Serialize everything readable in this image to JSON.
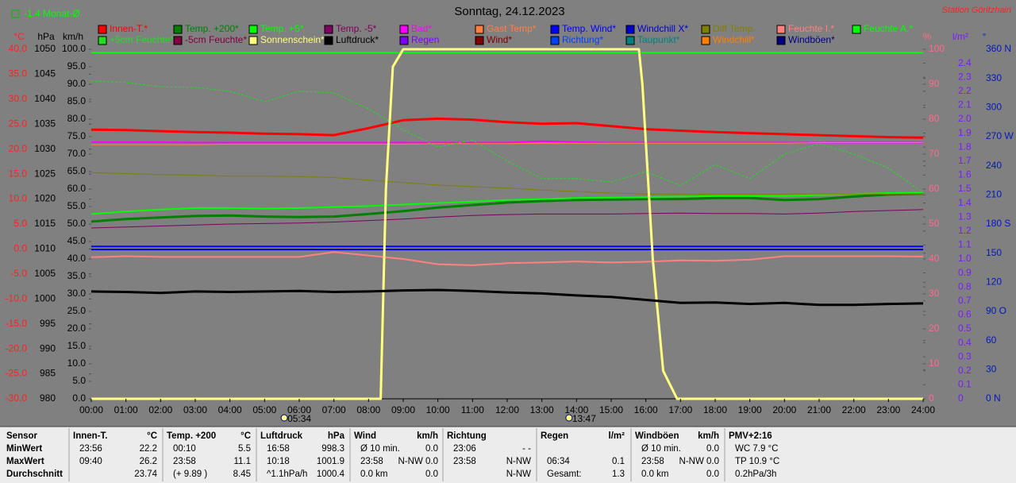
{
  "chart_data": {
    "type": "line",
    "title": "Sonntag, 24.12.2023",
    "station": "Station Göritzhain",
    "month_avg": "-1.4 Monat-Ø",
    "x": [
      0,
      1,
      2,
      3,
      4,
      5,
      6,
      7,
      8,
      9,
      10,
      11,
      12,
      13,
      14,
      15,
      16,
      17,
      18,
      19,
      20,
      21,
      22,
      23,
      24
    ],
    "xlim": [
      0,
      24
    ],
    "xticks": [
      {
        "value": 0,
        "label": "00:00"
      },
      {
        "value": 1,
        "label": "01:00"
      },
      {
        "value": 2,
        "label": "02:00"
      },
      {
        "value": 3,
        "label": "03:00"
      },
      {
        "value": 4,
        "label": "04:00"
      },
      {
        "value": 5,
        "label": "05:00"
      },
      {
        "value": 6,
        "label": "06:00"
      },
      {
        "value": 7,
        "label": "07:00"
      },
      {
        "value": 8,
        "label": "08:00"
      },
      {
        "value": 9,
        "label": "09:00"
      },
      {
        "value": 10,
        "label": "10:00"
      },
      {
        "value": 11,
        "label": "11:00"
      },
      {
        "value": 12,
        "label": "12:00"
      },
      {
        "value": 13,
        "label": "13:00"
      },
      {
        "value": 14,
        "label": "14:00"
      },
      {
        "value": 15,
        "label": "15:00"
      },
      {
        "value": 16,
        "label": "16:00"
      },
      {
        "value": 17,
        "label": "17:00"
      },
      {
        "value": 18,
        "label": "18:00"
      },
      {
        "value": 19,
        "label": "19:00"
      },
      {
        "value": 20,
        "label": "20:00"
      },
      {
        "value": 21,
        "label": "21:00"
      },
      {
        "value": 22,
        "label": "22:00"
      },
      {
        "value": 23,
        "label": "23:00"
      },
      {
        "value": 24,
        "label": "24:00"
      }
    ],
    "markers": [
      {
        "value": 5.567,
        "label": "05:34"
      },
      {
        "value": 13.783,
        "label": "13:47"
      }
    ],
    "axes": [
      {
        "name": "°C",
        "color": "#ff2020",
        "lim": [
          -30,
          40
        ],
        "ticks": [
          {
            "value": 40,
            "label": "40.0"
          },
          {
            "value": 35,
            "label": "35.0"
          },
          {
            "value": 30,
            "label": "30.0"
          },
          {
            "value": 25,
            "label": "25.0"
          },
          {
            "value": 20,
            "label": "20.0"
          },
          {
            "value": 15,
            "label": "15.0"
          },
          {
            "value": 10,
            "label": "10.0"
          },
          {
            "value": 5,
            "label": "5.0"
          },
          {
            "value": 0,
            "label": "0.0"
          },
          {
            "value": -5,
            "label": "-5.0"
          },
          {
            "value": -10,
            "label": "-10.0"
          },
          {
            "value": -15,
            "label": "-15.0"
          },
          {
            "value": -20,
            "label": "-20.0"
          },
          {
            "value": -25,
            "label": "-25.0"
          },
          {
            "value": -30,
            "label": "-30.0"
          }
        ]
      },
      {
        "name": "hPa",
        "color": "#000000",
        "lim": [
          980,
          1050
        ],
        "ticks": [
          1050,
          1045,
          1040,
          1035,
          1030,
          1025,
          1020,
          1015,
          1010,
          1005,
          1000,
          995,
          990,
          985,
          980
        ]
      },
      {
        "name": "km/h",
        "color": "#000000",
        "lim": [
          0,
          100
        ],
        "ticks": [
          {
            "value": 100,
            "label": "100.0"
          },
          {
            "value": 95,
            "label": "95.0"
          },
          {
            "value": 90,
            "label": "90.0"
          },
          {
            "value": 85,
            "label": "85.0"
          },
          {
            "value": 80,
            "label": "80.0"
          },
          {
            "value": 75,
            "label": "75.0"
          },
          {
            "value": 70,
            "label": "70.0"
          },
          {
            "value": 65,
            "label": "65.0"
          },
          {
            "value": 60,
            "label": "60.0"
          },
          {
            "value": 55,
            "label": "55.0"
          },
          {
            "value": 50,
            "label": "50.0"
          },
          {
            "value": 45,
            "label": "45.0"
          },
          {
            "value": 40,
            "label": "40.0"
          },
          {
            "value": 35,
            "label": "35.0"
          },
          {
            "value": 30,
            "label": "30.0"
          },
          {
            "value": 25,
            "label": "25.0"
          },
          {
            "value": 20,
            "label": "20.0"
          },
          {
            "value": 15,
            "label": "15.0"
          },
          {
            "value": 10,
            "label": "10.0"
          },
          {
            "value": 5,
            "label": "5.0"
          },
          {
            "value": 0,
            "label": "0.0"
          }
        ]
      },
      {
        "name": "%",
        "color": "#ff6a8a",
        "lim": [
          0,
          100
        ],
        "ticks": [
          100,
          90,
          80,
          70,
          60,
          50,
          40,
          30,
          20,
          10,
          0
        ]
      },
      {
        "name": "l/m²",
        "color": "#7a1aff",
        "lim": [
          0,
          2.5
        ],
        "ticks": [
          2.4,
          2.3,
          2.2,
          2.1,
          {
            "value": 2,
            "label": "2.0"
          },
          1.9,
          1.8,
          1.7,
          1.6,
          1.5,
          1.4,
          1.3,
          1.2,
          1.1,
          {
            "value": 1,
            "label": "1.0"
          },
          0.9,
          0.8,
          0.7,
          0.6,
          0.5,
          0.4,
          0.3,
          0.2,
          0.1,
          0
        ]
      },
      {
        "name": "°",
        "color": "#0018c0",
        "lim": [
          0,
          360
        ],
        "ticks": [
          {
            "value": 360,
            "label": "360 N"
          },
          330,
          300,
          {
            "value": 270,
            "label": "270 W"
          },
          240,
          210,
          {
            "value": 180,
            "label": "180 S"
          },
          150,
          120,
          {
            "value": 90,
            "label": "90 O"
          },
          60,
          30,
          {
            "value": 0,
            "label": "0 N"
          }
        ]
      }
    ],
    "series": [
      {
        "name": "Innen-T.*",
        "color": "#ff0000",
        "axis": 0,
        "line_width": 3,
        "values": [
          23.9,
          23.8,
          23.6,
          23.4,
          23.3,
          23.1,
          23.0,
          22.8,
          24.2,
          25.8,
          26.1,
          25.9,
          25.4,
          25.1,
          25.2,
          24.6,
          24.0,
          23.7,
          23.4,
          23.2,
          23.0,
          22.8,
          22.6,
          22.4,
          22.3
        ]
      },
      {
        "name": "Temp. +200*",
        "color": "#008000",
        "axis": 0,
        "line_width": 3,
        "values": [
          5.5,
          6.0,
          6.3,
          6.6,
          6.7,
          6.5,
          6.4,
          6.5,
          7.0,
          7.6,
          8.3,
          8.8,
          9.3,
          9.6,
          9.8,
          9.9,
          10.0,
          10.0,
          10.2,
          10.2,
          9.8,
          10.0,
          10.5,
          10.9,
          11.1
        ]
      },
      {
        "name": "Temp. +5*",
        "color": "#00ff00",
        "axis": 0,
        "line_width": 2,
        "values": [
          7.0,
          7.5,
          7.9,
          8.2,
          8.2,
          8.1,
          8.2,
          8.4,
          8.6,
          8.9,
          9.2,
          9.5,
          9.8,
          10.0,
          10.2,
          10.3,
          10.4,
          10.5,
          10.6,
          10.6,
          10.6,
          10.8,
          11.0,
          11.2,
          11.3
        ]
      },
      {
        "name": "Temp. -5*",
        "color": "#800060",
        "axis": 0,
        "line_width": 1,
        "values": [
          4.2,
          4.4,
          4.6,
          4.8,
          5.0,
          5.1,
          5.2,
          5.4,
          5.7,
          6.0,
          6.4,
          6.7,
          6.9,
          7.0,
          7.0,
          7.0,
          7.1,
          7.2,
          7.1,
          7.1,
          7.0,
          7.2,
          7.5,
          7.7,
          7.9
        ]
      },
      {
        "name": "Bad*",
        "color": "#ff00ff",
        "axis": 0,
        "line_width": 2,
        "values": [
          21.4,
          21.4,
          21.4,
          21.3,
          21.3,
          21.3,
          21.3,
          21.3,
          21.3,
          21.3,
          21.3,
          21.3,
          21.3,
          21.6,
          21.4,
          21.3,
          21.3,
          21.3,
          21.3,
          21.3,
          21.3,
          21.3,
          21.3,
          21.3,
          21.3
        ]
      },
      {
        "name": "Gast Temp*",
        "color": "#ff8040",
        "axis": 0,
        "line_width": 1,
        "values": [
          20.9,
          20.9,
          20.9,
          20.9,
          21.0,
          21.0,
          21.0,
          21.0,
          21.0,
          21.0,
          21.1,
          21.1,
          21.1,
          21.2,
          21.2,
          21.2,
          21.2,
          21.2,
          21.2,
          21.2,
          21.2,
          21.3,
          21.3,
          21.3,
          21.3
        ]
      },
      {
        "name": "Temp. Wind*",
        "color": "#0000ff",
        "axis": 0,
        "line_width": 2,
        "values": [
          0.5,
          0.5,
          0.5,
          0.5,
          0.5,
          0.5,
          0.5,
          0.5,
          0.5,
          0.5,
          0.5,
          0.5,
          0.5,
          0.5,
          0.5,
          0.5,
          0.5,
          0.5,
          0.5,
          0.5,
          0.5,
          0.5,
          0.5,
          0.5,
          0.5
        ]
      },
      {
        "name": "Windchill X*",
        "color": "#0000cc",
        "axis": 0,
        "line_width": 2,
        "values": [
          -0.1,
          -0.1,
          -0.1,
          -0.1,
          -0.1,
          -0.1,
          -0.1,
          -0.1,
          -0.1,
          -0.1,
          -0.1,
          -0.1,
          -0.1,
          -0.1,
          -0.1,
          -0.1,
          -0.1,
          -0.1,
          -0.1,
          -0.1,
          -0.1,
          -0.1,
          -0.1,
          -0.1,
          -0.1
        ]
      },
      {
        "name": "Diff Temp.",
        "color": "#808000",
        "axis": 0,
        "line_width": 1,
        "values": [
          15.3,
          15.1,
          14.9,
          14.8,
          14.6,
          14.6,
          14.5,
          14.3,
          13.8,
          13.3,
          12.8,
          12.5,
          12.2,
          11.8,
          11.5,
          11.2,
          11.0,
          11.0,
          11.0,
          11.0,
          11.0,
          11.0,
          11.0,
          11.0,
          11.0
        ]
      },
      {
        "name": "Feuchte I.*",
        "color": "#ff8080",
        "axis": 3,
        "line_width": 2,
        "values": [
          40.5,
          40.8,
          40.6,
          40.6,
          40.6,
          40.6,
          40.6,
          42.0,
          41.0,
          40.0,
          38.5,
          38.2,
          38.8,
          39.0,
          39.3,
          39.0,
          39.2,
          39.6,
          39.5,
          39.8,
          40.8,
          40.8,
          40.8,
          40.8,
          40.7
        ]
      },
      {
        "name": "Feuchte A.*",
        "color": "#00ff00",
        "axis": 3,
        "line_width": 2,
        "values": [
          99,
          99,
          99,
          99,
          99,
          99,
          99,
          99,
          99,
          99,
          99,
          99,
          99,
          99,
          99,
          99,
          99,
          99,
          99,
          99,
          99,
          99,
          99,
          99,
          99
        ]
      },
      {
        "name": "+5cm Feuchte*",
        "color": "#20e020",
        "axis": 3,
        "line_width": 1,
        "dashed": true,
        "values": [
          90.9,
          90.5,
          89.3,
          89.1,
          88.0,
          85.0,
          88.0,
          87.5,
          83,
          77,
          72,
          74,
          68,
          63,
          63,
          62,
          65,
          61,
          67,
          63,
          70,
          73,
          70,
          66,
          59
        ]
      },
      {
        "name": "-5cm Feuchte*",
        "color": "#800040"
      },
      {
        "name": "Sonnenschein*",
        "color": "#ffff80",
        "axis": 3,
        "line_width": 3,
        "x": [
          0,
          8.35,
          8.5,
          8.7,
          9.0,
          15.8,
          15.9,
          16.2,
          16.5,
          16.9,
          24
        ],
        "values": [
          0,
          0,
          60,
          95,
          100,
          100,
          90,
          40,
          8,
          0,
          0
        ]
      },
      {
        "name": "Luftdruck*",
        "color": "#000000",
        "axis": 1,
        "line_width": 3,
        "values": [
          1001.5,
          1001.4,
          1001.2,
          1001.5,
          1001.4,
          1001.5,
          1001.6,
          1001.4,
          1001.5,
          1001.7,
          1001.8,
          1001.6,
          1001.3,
          1001.1,
          1000.7,
          1000.4,
          999.8,
          999.2,
          999.3,
          999.0,
          999.2,
          998.8,
          998.8,
          999.0,
          999.1
        ]
      },
      {
        "name": "Regen",
        "color": "#8000ff"
      },
      {
        "name": "Wind*",
        "color": "#800000"
      },
      {
        "name": "Richtung*",
        "color": "#0040ff"
      },
      {
        "name": "Taupunkt*",
        "color": "#008080"
      },
      {
        "name": "Windchill*",
        "color": "#ff8000"
      },
      {
        "name": "Windböen*",
        "color": "#000080"
      }
    ]
  },
  "table": {
    "sensor_header": "Sensor",
    "row_labels": [
      "MinWert",
      "MaxWert",
      "Durchschnitt"
    ],
    "groups": [
      {
        "title": "Innen-T.",
        "unit": "°C",
        "rows": [
          {
            "left": "23:56",
            "right": "22.2"
          },
          {
            "left": "09:40",
            "right": "26.2"
          },
          {
            "right": "23.74"
          }
        ]
      },
      {
        "title": "Temp. +200",
        "unit": "°C",
        "rows": [
          {
            "left": "00:10",
            "right": "5.5"
          },
          {
            "left": "23:58",
            "right": "11.1"
          },
          {
            "left": "(+ 9.89 )",
            "right": "8.45"
          }
        ]
      },
      {
        "title": "Luftdruck",
        "unit": "hPa",
        "rows": [
          {
            "left": "16:58",
            "right": "998.3"
          },
          {
            "left": "10:18",
            "right": "1001.9"
          },
          {
            "left": "^1.1hPa/h",
            "right": "1000.4"
          }
        ]
      },
      {
        "title": "Wind",
        "unit": "km/h",
        "rows": [
          {
            "left": "Ø 10 min.",
            "right": "0.0"
          },
          {
            "left": "23:58",
            "right": "N-NW 0.0"
          },
          {
            "left": "0.0 km",
            "right": "0.0"
          }
        ]
      },
      {
        "title": "Richtung",
        "rows": [
          {
            "left": "23:06",
            "right": "- -"
          },
          {
            "left": "23:58",
            "right": "N-NW"
          },
          {
            "right": "N-NW"
          }
        ]
      },
      {
        "title": "Regen",
        "unit": "l/m²",
        "rows": [
          {},
          {
            "left": "06:34",
            "right": "0.1"
          },
          {
            "left": "Gesamt:",
            "right": "1.3"
          }
        ]
      },
      {
        "title": "Windböen",
        "unit": "km/h",
        "rows": [
          {
            "left": "Ø 10 min.",
            "right": "0.0"
          },
          {
            "left": "23:58",
            "right": "N-NW 0.0"
          },
          {
            "left": "0.0 km",
            "right": "0.0"
          }
        ]
      },
      {
        "title": "PMV+2:16",
        "rows": [
          {
            "left": "WC 7.9 °C"
          },
          {
            "left": "TP 10.9 °C"
          },
          {
            "left": "0.2hPa/3h"
          }
        ]
      }
    ]
  }
}
